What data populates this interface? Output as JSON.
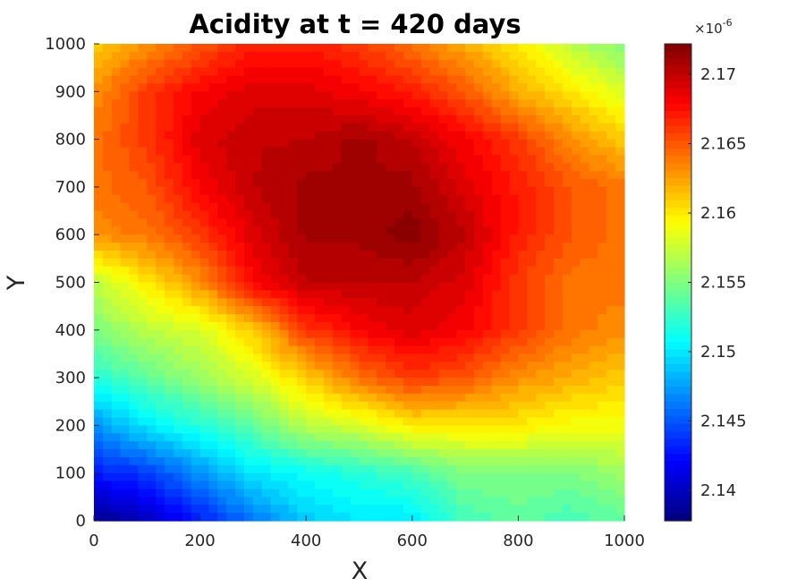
{
  "chart_data": {
    "type": "heatmap",
    "title": "Acidity at t = 420 days",
    "xlabel": "X",
    "ylabel": "Y",
    "xlim": [
      0,
      1000
    ],
    "ylim": [
      0,
      1000
    ],
    "x_ticks": [
      "0",
      "200",
      "400",
      "600",
      "800",
      "1000"
    ],
    "y_ticks": [
      "0",
      "100",
      "200",
      "300",
      "400",
      "500",
      "600",
      "700",
      "800",
      "900",
      "1000"
    ],
    "colormap": "jet",
    "colorbar": {
      "range": [
        2.1378,
        2.1722
      ],
      "ticks": [
        "2.14",
        "2.145",
        "2.15",
        "2.155",
        "2.16",
        "2.165",
        "2.17"
      ],
      "exponent_base": "×10",
      "exponent_power": "-6"
    },
    "field": {
      "grid_x": [
        0,
        100,
        200,
        300,
        400,
        500,
        600,
        700,
        800,
        900,
        1000
      ],
      "grid_y": [
        1000,
        900,
        800,
        700,
        600,
        500,
        400,
        300,
        200,
        100,
        0
      ],
      "values": [
        [
          2.161,
          2.163,
          2.165,
          2.167,
          2.167,
          2.166,
          2.164,
          2.162,
          2.16,
          2.157,
          2.155
        ],
        [
          2.163,
          2.166,
          2.168,
          2.169,
          2.169,
          2.168,
          2.167,
          2.165,
          2.162,
          2.16,
          2.158
        ],
        [
          2.164,
          2.166,
          2.169,
          2.17,
          2.17,
          2.171,
          2.17,
          2.168,
          2.166,
          2.163,
          2.161
        ],
        [
          2.164,
          2.165,
          2.168,
          2.17,
          2.171,
          2.171,
          2.171,
          2.169,
          2.167,
          2.165,
          2.164
        ],
        [
          2.163,
          2.164,
          2.166,
          2.169,
          2.171,
          2.171,
          2.172,
          2.17,
          2.167,
          2.165,
          2.164
        ],
        [
          2.157,
          2.16,
          2.163,
          2.168,
          2.17,
          2.17,
          2.17,
          2.169,
          2.166,
          2.164,
          2.164
        ],
        [
          2.155,
          2.157,
          2.158,
          2.161,
          2.166,
          2.168,
          2.169,
          2.168,
          2.166,
          2.164,
          2.163
        ],
        [
          2.152,
          2.154,
          2.156,
          2.158,
          2.161,
          2.164,
          2.166,
          2.165,
          2.163,
          2.162,
          2.161
        ],
        [
          2.147,
          2.15,
          2.152,
          2.154,
          2.157,
          2.158,
          2.16,
          2.16,
          2.16,
          2.159,
          2.159
        ],
        [
          2.143,
          2.144,
          2.147,
          2.15,
          2.151,
          2.152,
          2.153,
          2.155,
          2.155,
          2.155,
          2.156
        ],
        [
          2.138,
          2.14,
          2.143,
          2.146,
          2.149,
          2.15,
          2.15,
          2.153,
          2.154,
          2.153,
          2.154
        ]
      ]
    }
  }
}
